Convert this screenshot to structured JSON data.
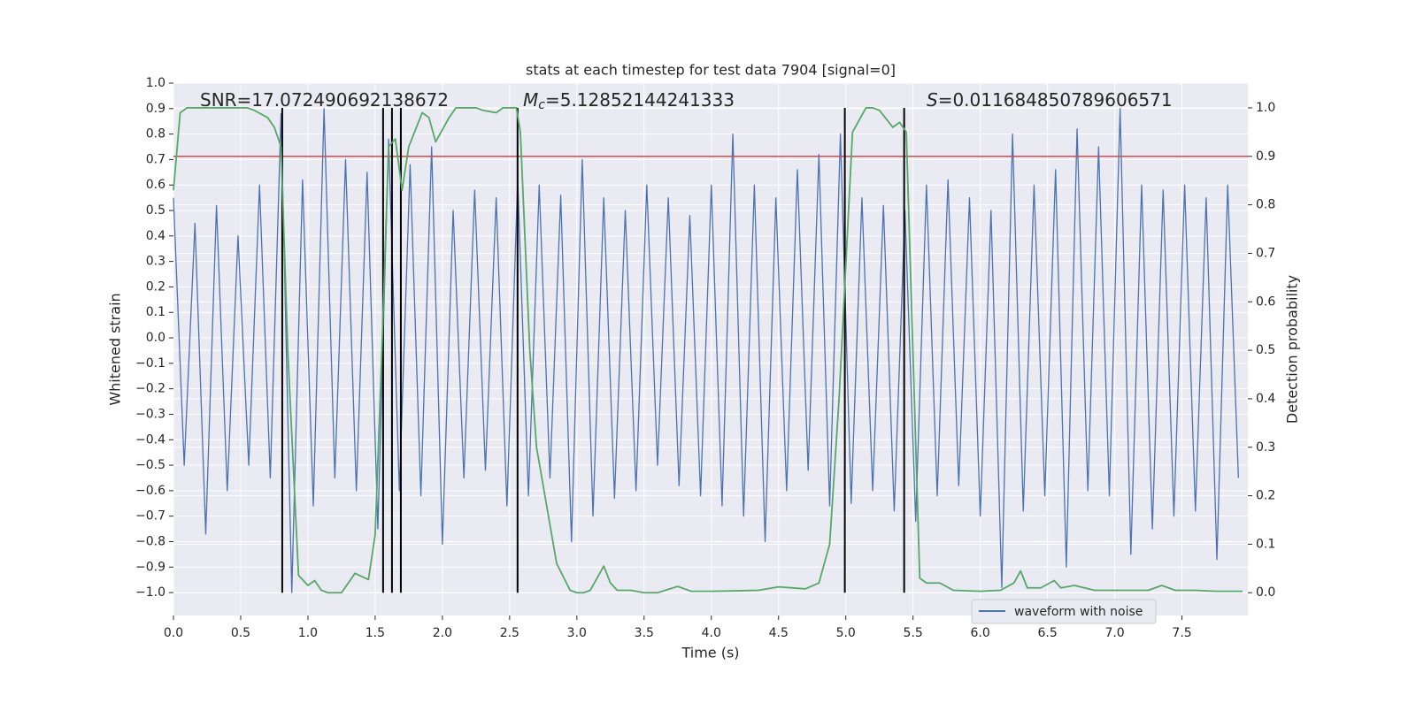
{
  "chart_data": {
    "type": "line",
    "title": "stats at each timestep for test data 7904 [signal=0]",
    "xlabel": "Time (s)",
    "ylabel": "Whitened strain",
    "y2label": "Detection probability",
    "annotations": [
      {
        "rest": "SNR=17.072490692138672"
      },
      {
        "italic": "M",
        "sub": "c",
        "rest": "=5.12852144241333"
      },
      {
        "italic": "S",
        "rest": "=0.011684850789606571"
      }
    ],
    "xlim": [
      0,
      7.99
    ],
    "ylim": [
      -1.09,
      1.0
    ],
    "y2lim": [
      -0.047,
      1.051
    ],
    "xticks": [
      {
        "value": 0,
        "label": "0.0"
      },
      0.5,
      {
        "value": 1,
        "label": "1.0"
      },
      1.5,
      {
        "value": 2,
        "label": "2.0"
      },
      2.5,
      {
        "value": 3,
        "label": "3.0"
      },
      3.5,
      {
        "value": 4,
        "label": "4.0"
      },
      4.5,
      {
        "value": 5,
        "label": "5.0"
      },
      5.5,
      {
        "value": 6,
        "label": "6.0"
      },
      6.5,
      {
        "value": 7,
        "label": "7.0"
      },
      7.5
    ],
    "yticks": [
      {
        "value": 1,
        "label": "1.0"
      },
      0.9,
      0.8,
      0.7,
      0.6,
      0.5,
      0.4,
      0.3,
      0.2,
      0.1,
      {
        "value": 0,
        "label": "0.0"
      },
      {
        "value": -0.1,
        "label": "−0.1"
      },
      {
        "value": -0.2,
        "label": "−0.2"
      },
      {
        "value": -0.3,
        "label": "−0.3"
      },
      {
        "value": -0.4,
        "label": "−0.4"
      },
      {
        "value": -0.5,
        "label": "−0.5"
      },
      {
        "value": -0.6,
        "label": "−0.6"
      },
      {
        "value": -0.7,
        "label": "−0.7"
      },
      {
        "value": -0.8,
        "label": "−0.8"
      },
      {
        "value": -0.9,
        "label": "−0.9"
      },
      {
        "value": -1,
        "label": "−1.0"
      }
    ],
    "y2ticks": [
      {
        "value": 0,
        "label": "0.0"
      },
      0.1,
      0.2,
      0.3,
      0.4,
      0.5,
      0.6,
      0.7,
      0.8,
      0.9,
      {
        "value": 1,
        "label": "1.0"
      }
    ],
    "grid": true,
    "legend": "lower right",
    "threshold": {
      "value": 0.9,
      "color": "#c44e52",
      "axis": "y2"
    },
    "vlines": {
      "x": [
        0.809,
        1.559,
        1.625,
        1.691,
        2.559,
        4.993,
        5.434
      ],
      "color": "#000000"
    },
    "series": [
      {
        "name": "waveform with noise",
        "color": "#4c72b0",
        "x": [
          0,
          0.08,
          0.16,
          0.24,
          0.32,
          0.4,
          0.48,
          0.56,
          0.64,
          0.72,
          0.8,
          0.88,
          0.96,
          1.04,
          1.12,
          1.2,
          1.28,
          1.36,
          1.44,
          1.52,
          1.6,
          1.68,
          1.76,
          1.84,
          1.92,
          2,
          2.08,
          2.16,
          2.24,
          2.32,
          2.4,
          2.48,
          2.56,
          2.64,
          2.72,
          2.8,
          2.88,
          2.96,
          3.04,
          3.12,
          3.2,
          3.28,
          3.36,
          3.44,
          3.52,
          3.6,
          3.68,
          3.76,
          3.84,
          3.92,
          4,
          4.08,
          4.16,
          4.24,
          4.32,
          4.4,
          4.48,
          4.56,
          4.64,
          4.72,
          4.8,
          4.88,
          4.96,
          5.04,
          5.12,
          5.2,
          5.28,
          5.36,
          5.44,
          5.52,
          5.6,
          5.68,
          5.76,
          5.84,
          5.92,
          6,
          6.08,
          6.16,
          6.24,
          6.32,
          6.4,
          6.48,
          6.56,
          6.64,
          6.72,
          6.8,
          6.88,
          6.96,
          7.04,
          7.12,
          7.2,
          7.28,
          7.36,
          7.44,
          7.52,
          7.6,
          7.68,
          7.76,
          7.84,
          7.92
        ],
        "values": [
          0.55,
          -0.5,
          0.45,
          -0.77,
          0.52,
          -0.6,
          0.4,
          -0.5,
          0.6,
          -0.55,
          0.88,
          -1.0,
          0.62,
          -0.66,
          0.9,
          -0.55,
          0.7,
          -0.6,
          0.65,
          -0.75,
          0.78,
          -0.6,
          0.68,
          -0.62,
          0.75,
          -0.81,
          0.5,
          -0.55,
          0.58,
          -0.52,
          0.55,
          -0.66,
          0.62,
          -0.62,
          0.6,
          -0.55,
          0.56,
          -0.8,
          0.7,
          -0.7,
          0.55,
          -0.63,
          0.5,
          -0.6,
          0.6,
          -0.5,
          0.55,
          -0.58,
          0.48,
          -0.62,
          0.6,
          -0.66,
          0.8,
          -0.7,
          0.6,
          -0.8,
          0.55,
          -0.6,
          0.66,
          -0.52,
          0.72,
          -0.66,
          0.8,
          -0.65,
          0.55,
          -0.6,
          0.52,
          -0.68,
          0.5,
          -0.72,
          0.6,
          -0.62,
          0.62,
          -0.58,
          0.55,
          -0.7,
          0.5,
          -0.98,
          0.8,
          -0.68,
          0.6,
          -0.62,
          0.66,
          -0.9,
          0.82,
          -0.6,
          0.75,
          -0.62,
          0.9,
          -0.85,
          0.6,
          -0.75,
          0.58,
          -0.7,
          0.6,
          -0.68,
          0.55,
          -0.87,
          0.6,
          -0.55
        ]
      },
      {
        "color": "#55a868",
        "axis": "y2",
        "x": [
          0,
          0.05,
          0.1,
          0.2,
          0.55,
          0.6,
          0.7,
          0.75,
          0.8,
          0.85,
          0.93,
          1.0,
          1.05,
          1.1,
          1.15,
          1.25,
          1.35,
          1.45,
          1.5,
          1.55,
          1.6,
          1.65,
          1.7,
          1.75,
          1.85,
          1.9,
          1.95,
          2.05,
          2.1,
          2.25,
          2.3,
          2.4,
          2.45,
          2.55,
          2.58,
          2.65,
          2.7,
          2.85,
          2.95,
          3.0,
          3.05,
          3.1,
          3.15,
          3.2,
          3.25,
          3.3,
          3.4,
          3.5,
          3.6,
          3.75,
          3.85,
          4.0,
          4.2,
          4.35,
          4.5,
          4.7,
          4.8,
          4.88,
          4.95,
          5.05,
          5.15,
          5.2,
          5.25,
          5.35,
          5.4,
          5.45,
          5.55,
          5.6,
          5.7,
          5.8,
          6.0,
          6.15,
          6.25,
          6.3,
          6.35,
          6.45,
          6.55,
          6.6,
          6.7,
          6.85,
          7.0,
          7.25,
          7.35,
          7.45,
          7.6,
          7.75,
          7.95
        ],
        "values": [
          0.83,
          0.99,
          1.0,
          1.0,
          1.0,
          0.995,
          0.98,
          0.96,
          0.92,
          0.5,
          0.036,
          0.015,
          0.025,
          0.005,
          0.0,
          0.0,
          0.04,
          0.027,
          0.12,
          0.5,
          0.92,
          0.936,
          0.83,
          0.92,
          0.99,
          0.98,
          0.93,
          0.98,
          1.0,
          1.0,
          0.995,
          0.99,
          1.0,
          1.0,
          0.95,
          0.5,
          0.3,
          0.06,
          0.005,
          0.0,
          0.0,
          0.005,
          0.03,
          0.055,
          0.02,
          0.005,
          0.005,
          0.0,
          0.0,
          0.013,
          0.003,
          0.003,
          0.004,
          0.005,
          0.012,
          0.008,
          0.02,
          0.1,
          0.4,
          0.95,
          1.0,
          1.0,
          0.995,
          0.96,
          0.97,
          0.95,
          0.03,
          0.02,
          0.02,
          0.005,
          0.003,
          0.005,
          0.02,
          0.045,
          0.01,
          0.01,
          0.025,
          0.01,
          0.015,
          0.005,
          0.005,
          0.005,
          0.015,
          0.005,
          0.005,
          0.003,
          0.003
        ]
      }
    ]
  }
}
